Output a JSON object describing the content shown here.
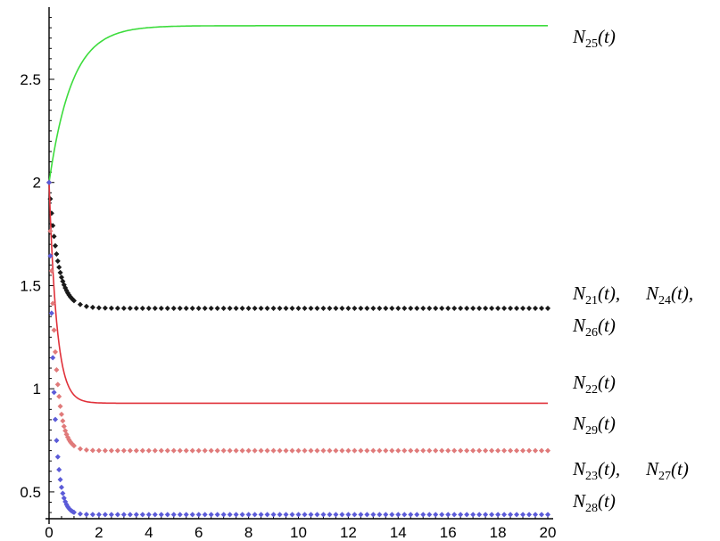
{
  "chart_data": {
    "type": "line",
    "xlim": [
      0,
      20
    ],
    "ylim": [
      0.37,
      2.85
    ],
    "x_ticks": [
      "0",
      "2",
      "4",
      "6",
      "8",
      "10",
      "12",
      "14",
      "16",
      "18",
      "20"
    ],
    "y_ticks": [
      "0.5",
      "1",
      "1.5",
      "2",
      "2.5"
    ],
    "grid": false,
    "series": [
      {
        "name": "N25(t)",
        "color": "#3ddc3d",
        "style": "line",
        "start": 2.0,
        "end": 2.76,
        "rate": 1.1
      },
      {
        "name": "N21(t), N24(t), N26(t)",
        "color": "#1a1a1a",
        "style": "points",
        "start": 2.0,
        "end": 1.39,
        "rate": 2.8
      },
      {
        "name": "N22(t)",
        "color": "#e0313a",
        "style": "line",
        "start": 2.0,
        "end": 0.93,
        "rate": 3.3
      },
      {
        "name": "N29(t)",
        "color": "#e07a7a",
        "style": "points",
        "start": 2.0,
        "end": 0.7,
        "rate": 4.0
      },
      {
        "name": "N23(t), N27(t) / N28(t)",
        "color": "#5b5bd8",
        "style": "points",
        "start": 2.0,
        "end": 0.39,
        "rate": 5.0
      }
    ],
    "labels": [
      {
        "prefix": "N",
        "sub": "25",
        "suffix": "(t)"
      },
      {
        "prefix": "N",
        "sub": "21",
        "suffix": "(t),"
      },
      {
        "prefix": "N",
        "sub": "24",
        "suffix": "(t),"
      },
      {
        "prefix": "N",
        "sub": "26",
        "suffix": "(t)"
      },
      {
        "prefix": "N",
        "sub": "22",
        "suffix": "(t)"
      },
      {
        "prefix": "N",
        "sub": "29",
        "suffix": "(t)"
      },
      {
        "prefix": "N",
        "sub": "23",
        "suffix": "(t),"
      },
      {
        "prefix": "N",
        "sub": "27",
        "suffix": "(t)"
      },
      {
        "prefix": "N",
        "sub": "28",
        "suffix": "(t)"
      }
    ]
  }
}
